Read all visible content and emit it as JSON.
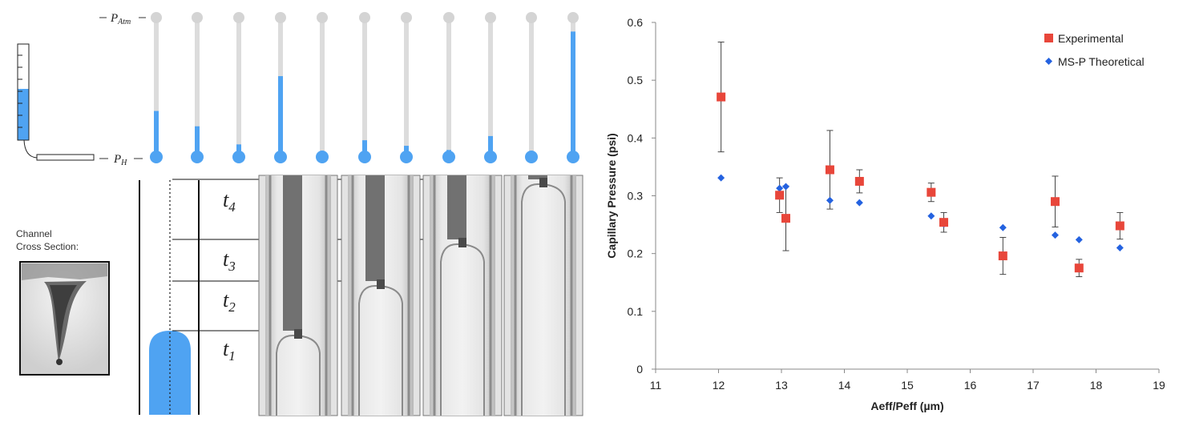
{
  "left_panel": {
    "p_atm": {
      "base": "P",
      "sub": "Atm"
    },
    "p_h": {
      "base": "P",
      "sub": "H"
    },
    "channel_label": [
      "Channel",
      "Cross Section:"
    ],
    "time_labels": [
      {
        "base": "t",
        "sub": "4"
      },
      {
        "base": "t",
        "sub": "3"
      },
      {
        "base": "t",
        "sub": "2"
      },
      {
        "base": "t",
        "sub": "1"
      }
    ],
    "manometer_fill_levels": [
      0.33,
      0.22,
      0.09,
      0.58,
      0.03,
      0.12,
      0.08,
      0.05,
      0.15,
      0.02,
      0.9
    ],
    "colors": {
      "fluid": "#4fa3f2",
      "tube": "#dcdcdc",
      "bulb_top": "#d4d4d4"
    }
  },
  "chart_data": {
    "type": "scatter",
    "xlabel": "Aeff/Peff (µm)",
    "ylabel": "Capillary Pressure (psi)",
    "xlim": [
      11,
      19
    ],
    "ylim": [
      0,
      0.6
    ],
    "x_ticks": [
      "11",
      "12",
      "13",
      "14",
      "15",
      "16",
      "17",
      "18",
      "19"
    ],
    "y_ticks": [
      "0",
      "0.1",
      "0.2",
      "0.3",
      "0.4",
      "0.5",
      "0.6"
    ],
    "legend_position": "top-right",
    "grid": false,
    "series": [
      {
        "name": "Experimental",
        "marker": "square",
        "color": "#e8463a",
        "points": [
          {
            "x": 12.04,
            "y": 0.471,
            "err": 0.095
          },
          {
            "x": 12.97,
            "y": 0.301,
            "err": 0.03
          },
          {
            "x": 13.07,
            "y": 0.261,
            "err": 0.056
          },
          {
            "x": 13.77,
            "y": 0.345,
            "err": 0.068
          },
          {
            "x": 14.24,
            "y": 0.325,
            "err": 0.02
          },
          {
            "x": 15.38,
            "y": 0.306,
            "err": 0.016
          },
          {
            "x": 15.58,
            "y": 0.254,
            "err": 0.017
          },
          {
            "x": 16.52,
            "y": 0.196,
            "err": 0.032
          },
          {
            "x": 17.35,
            "y": 0.29,
            "err": 0.044
          },
          {
            "x": 17.73,
            "y": 0.175,
            "err": 0.015
          },
          {
            "x": 18.38,
            "y": 0.248,
            "err": 0.023
          }
        ]
      },
      {
        "name": "MS-P Theoretical",
        "marker": "diamond",
        "color": "#2462e0",
        "points": [
          {
            "x": 12.04,
            "y": 0.331
          },
          {
            "x": 12.97,
            "y": 0.313
          },
          {
            "x": 13.07,
            "y": 0.316
          },
          {
            "x": 13.77,
            "y": 0.292
          },
          {
            "x": 14.24,
            "y": 0.288
          },
          {
            "x": 15.38,
            "y": 0.265
          },
          {
            "x": 15.58,
            "y": 0.251
          },
          {
            "x": 16.52,
            "y": 0.245
          },
          {
            "x": 17.35,
            "y": 0.232
          },
          {
            "x": 17.73,
            "y": 0.224
          },
          {
            "x": 18.38,
            "y": 0.21
          }
        ]
      }
    ]
  }
}
